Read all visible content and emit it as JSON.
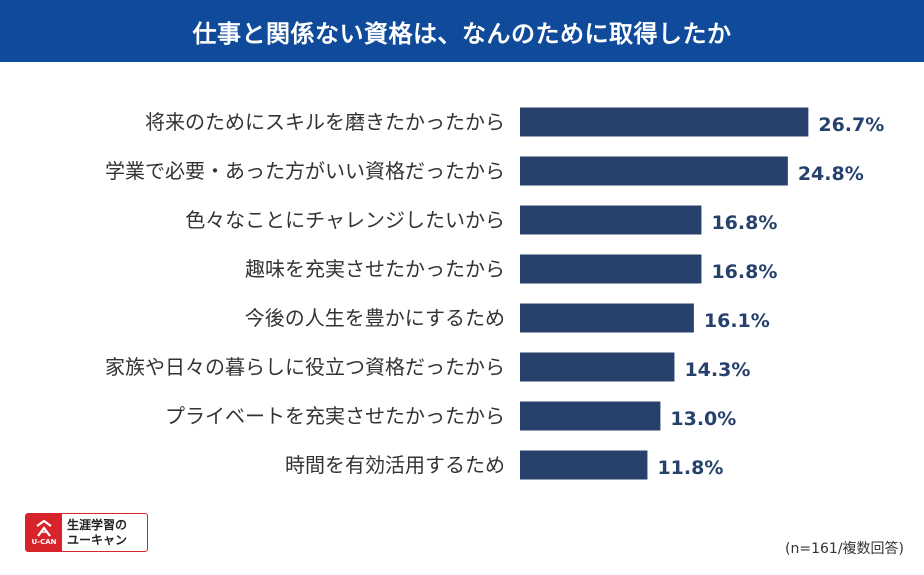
{
  "header": {
    "title": "仕事と関係ない資格は、なんのために取得したか"
  },
  "chart_data": {
    "type": "bar",
    "orientation": "horizontal",
    "categories": [
      "将来のためにスキルを磨きたかったから",
      "学業で必要・あった方がいい資格だったから",
      "色々なことにチャレンジしたいから",
      "趣味を充実させたかったから",
      "今後の人生を豊かにするため",
      "家族や日々の暮らしに役立つ資格だったから",
      "プライベートを充実させたかったから",
      "時間を有効活用するため"
    ],
    "values": [
      26.7,
      24.8,
      16.8,
      16.8,
      16.1,
      14.3,
      13.0,
      11.8
    ],
    "value_labels": [
      "26.7%",
      "24.8%",
      "16.8%",
      "16.8%",
      "16.1%",
      "14.3%",
      "13.0%",
      "11.8%"
    ],
    "unit": "%",
    "bar_color": "#27416d",
    "grid": false,
    "legend": "none"
  },
  "logo": {
    "line1": "生涯学習の",
    "line2": "ユーキャン",
    "brand": "U-CAN",
    "color": "#d8232a"
  },
  "footnote": "(n=161/複数回答)"
}
